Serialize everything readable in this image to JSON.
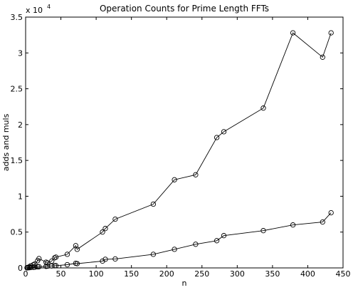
{
  "chart_data": {
    "type": "line",
    "title": "Operation Counts for Prime Length FFTs",
    "xlabel": "n",
    "ylabel": "adds and muls",
    "xlim": [
      0,
      450
    ],
    "ylim": [
      0,
      35000
    ],
    "y_multiplier_base": "x 10",
    "y_multiplier_exp": "4",
    "x_ticks": [
      0,
      50,
      100,
      150,
      200,
      250,
      300,
      350,
      400,
      450
    ],
    "x_tick_labels": [
      "0",
      "50",
      "100",
      "150",
      "200",
      "250",
      "300",
      "350",
      "400",
      "450"
    ],
    "y_ticks": [
      0,
      5000,
      10000,
      15000,
      20000,
      25000,
      30000,
      35000
    ],
    "y_tick_labels": [
      "0",
      "0.5",
      "1",
      "1.5",
      "2",
      "2.5",
      "3",
      "3.5"
    ],
    "grid": false,
    "marker": "circle",
    "series": [
      {
        "x": [
          2,
          3,
          5,
          7,
          11,
          13,
          17,
          19,
          29,
          31,
          37,
          41,
          43,
          59,
          71,
          73,
          109,
          113,
          127,
          181,
          211,
          241,
          271,
          281,
          337,
          379,
          421,
          433
        ],
        "y": [
          20,
          60,
          150,
          280,
          450,
          550,
          1000,
          1300,
          800,
          700,
          950,
          1400,
          1500,
          1900,
          3100,
          2600,
          5000,
          5500,
          6800,
          8900,
          12300,
          13000,
          18200,
          19000,
          22300,
          32800,
          29400,
          32800
        ]
      },
      {
        "x": [
          2,
          3,
          5,
          7,
          11,
          13,
          17,
          19,
          29,
          31,
          37,
          41,
          43,
          59,
          71,
          73,
          109,
          113,
          127,
          181,
          211,
          241,
          271,
          281,
          337,
          379,
          421,
          433
        ],
        "y": [
          5,
          15,
          30,
          50,
          80,
          100,
          150,
          170,
          220,
          250,
          280,
          300,
          320,
          450,
          650,
          600,
          950,
          1200,
          1250,
          1900,
          2600,
          3300,
          3800,
          4500,
          5200,
          6000,
          6400,
          7700
        ]
      }
    ]
  }
}
